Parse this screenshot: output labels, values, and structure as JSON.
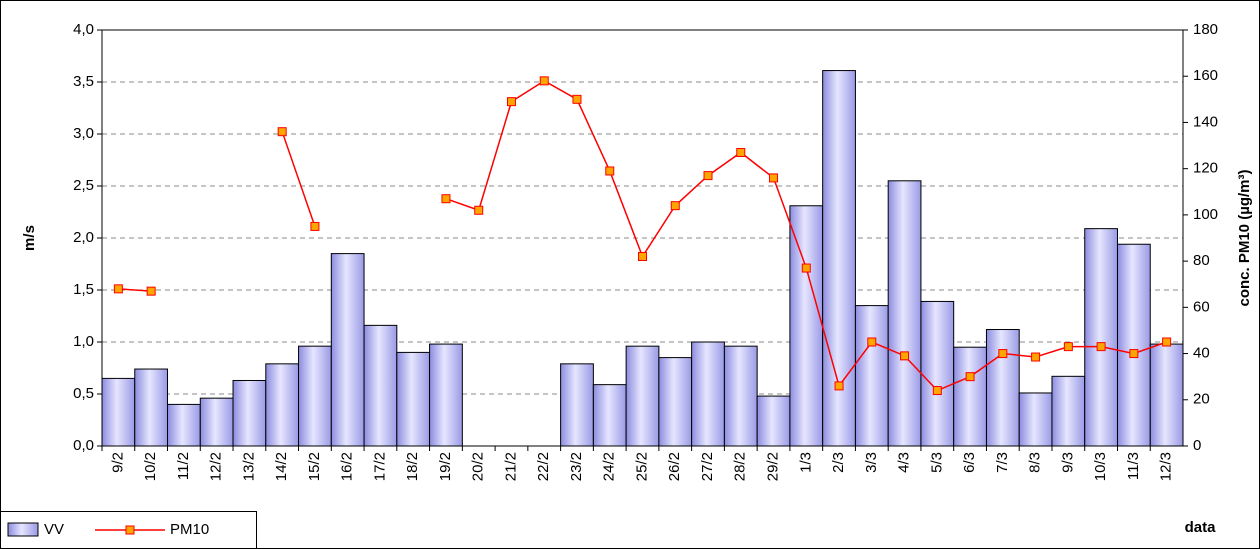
{
  "chart_data": {
    "type": "bar_line",
    "x_label": "data",
    "y_label": "m/s",
    "y2_label": "conc. PM10 (µg/m³)",
    "categories": [
      "9/2",
      "10/2",
      "11/2",
      "12/2",
      "13/2",
      "14/2",
      "15/2",
      "16/2",
      "17/2",
      "18/2",
      "19/2",
      "20/2",
      "21/2",
      "22/2",
      "23/2",
      "24/2",
      "25/2",
      "26/2",
      "27/2",
      "28/2",
      "29/2",
      "1/3",
      "2/3",
      "3/3",
      "4/3",
      "5/3",
      "6/3",
      "7/3",
      "8/3",
      "9/3",
      "10/3",
      "11/3",
      "12/3"
    ],
    "series": [
      {
        "name": "VV",
        "type": "bar",
        "color": "#b4b4f0",
        "values": [
          0.65,
          0.74,
          0.4,
          0.46,
          0.63,
          0.79,
          0.96,
          1.85,
          1.16,
          0.9,
          0.98,
          null,
          null,
          null,
          0.79,
          0.59,
          0.96,
          0.85,
          1.0,
          0.96,
          0.48,
          2.31,
          3.61,
          1.35,
          2.55,
          1.39,
          0.95,
          1.12,
          0.51,
          0.67,
          2.09,
          1.94,
          0.98
        ]
      },
      {
        "name": "PM10",
        "type": "line",
        "axis": "y2",
        "color": "#ff0000",
        "marker_color": "#ffa500",
        "values": [
          68,
          67,
          null,
          null,
          null,
          136,
          95,
          null,
          null,
          null,
          107,
          102,
          149,
          158,
          150,
          119,
          82,
          104,
          117,
          127,
          116,
          77,
          26,
          45,
          39,
          24,
          30,
          40,
          38.5,
          43,
          43,
          40,
          45
        ]
      }
    ],
    "ylim": [
      0,
      4
    ],
    "yticks": [
      {
        "value": 0,
        "label": "0,0"
      },
      {
        "value": 0.5,
        "label": "0,5"
      },
      {
        "value": 1,
        "label": "1,0"
      },
      {
        "value": 1.5,
        "label": "1,5"
      },
      {
        "value": 2,
        "label": "2,0"
      },
      {
        "value": 2.5,
        "label": "2,5"
      },
      {
        "value": 3,
        "label": "3,0"
      },
      {
        "value": 3.5,
        "label": "3,5"
      },
      {
        "value": 4,
        "label": "4,0"
      }
    ],
    "y2lim": [
      0,
      180
    ],
    "y2ticks": [
      0,
      20,
      40,
      60,
      80,
      100,
      120,
      140,
      160,
      180
    ],
    "grid": true,
    "legend": "bottom-left"
  }
}
